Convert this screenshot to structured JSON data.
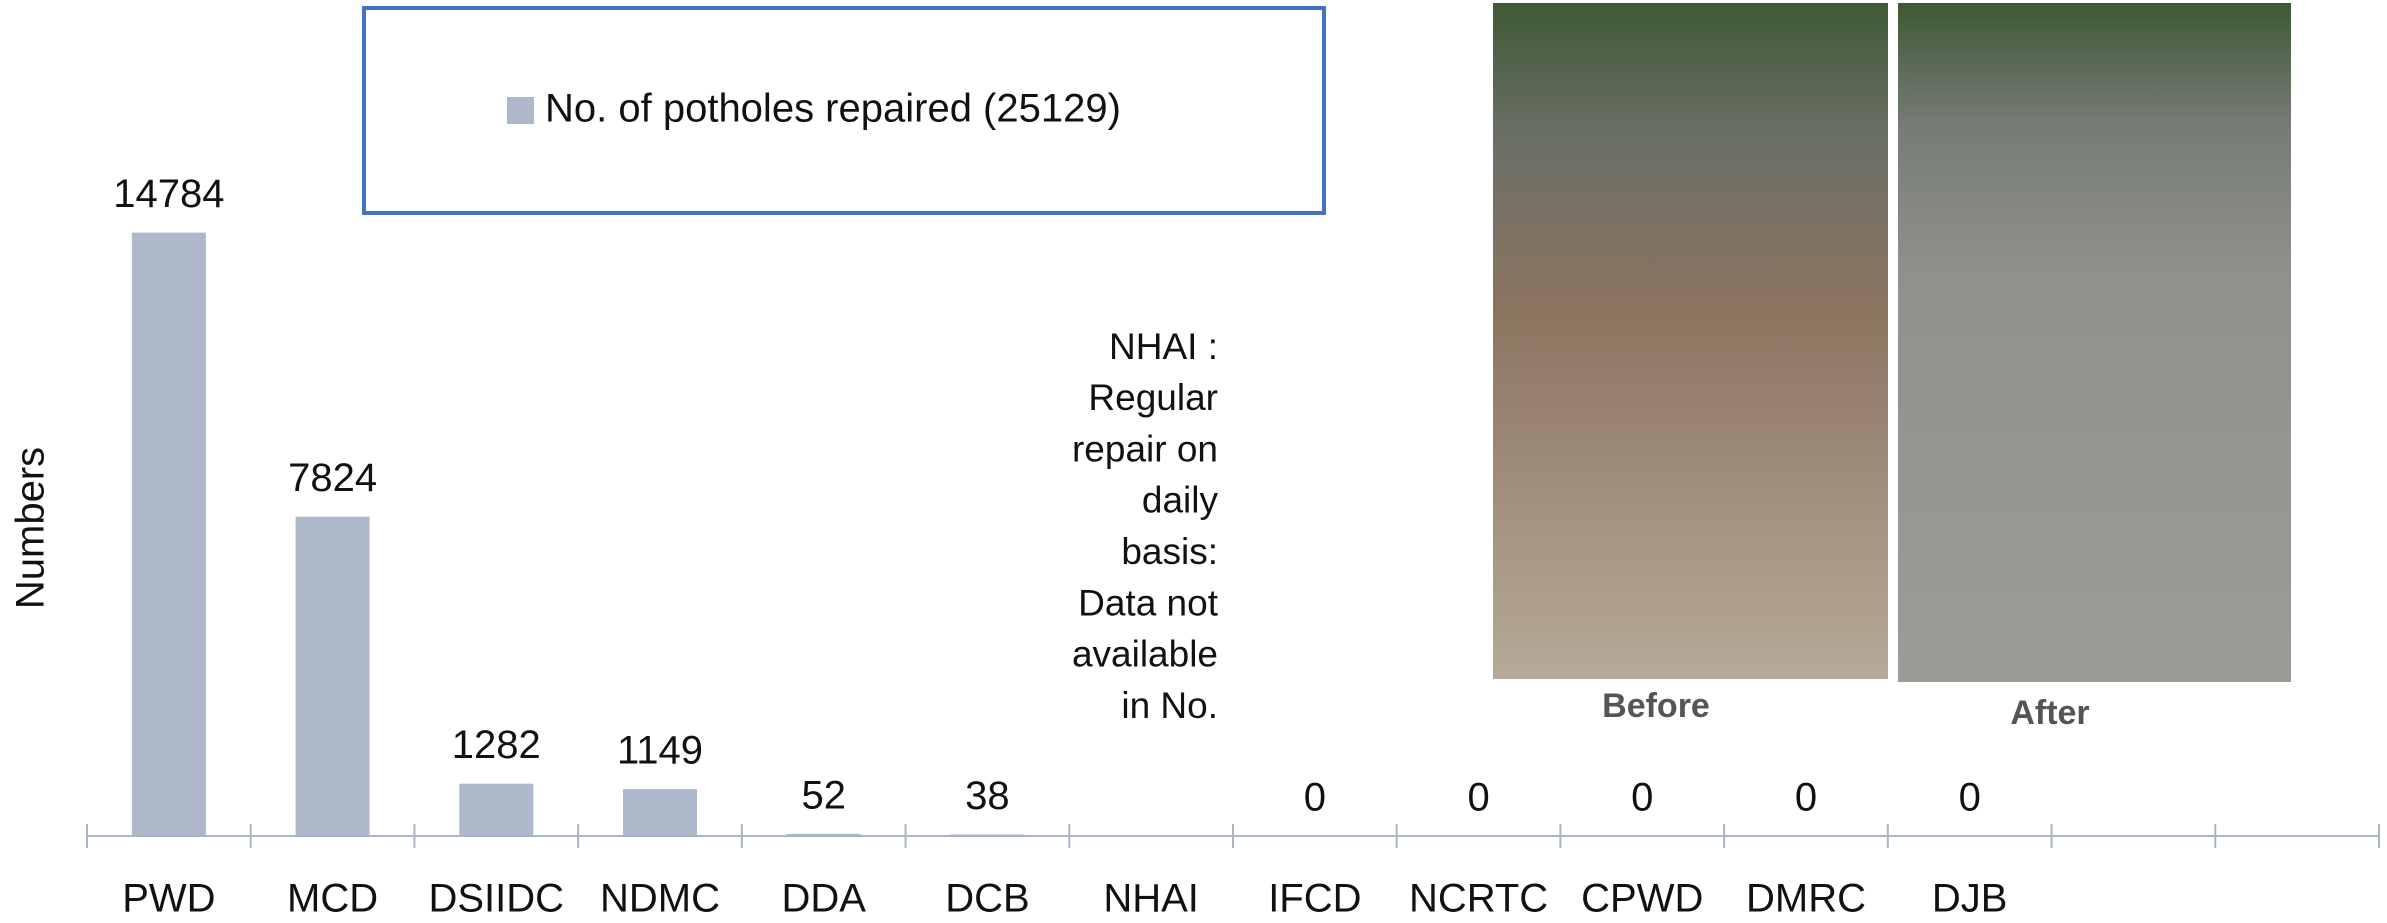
{
  "chart_data": {
    "type": "bar",
    "categories": [
      "PWD",
      "MCD",
      "DSIIDC",
      "NDMC",
      "DDA",
      "DCB",
      "NHAI",
      "IFCD",
      "NCRTC",
      "CPWD",
      "DMRC",
      "DJB",
      null,
      null
    ],
    "series": [
      {
        "name": "No. of potholes repaired (25129)",
        "color": "#adb9ca",
        "values": [
          14784,
          7824,
          1282,
          1149,
          52,
          38,
          null,
          0,
          0,
          0,
          0,
          0,
          null,
          null
        ]
      }
    ],
    "ylim": [
      0,
      16000
    ],
    "y_label": "Numbers",
    "annotation": [
      "NHAI :",
      "Regular",
      "repair on",
      "daily",
      "basis:",
      "Data not",
      "available",
      "in No."
    ],
    "photo_labels": [
      "Before",
      "After"
    ]
  }
}
